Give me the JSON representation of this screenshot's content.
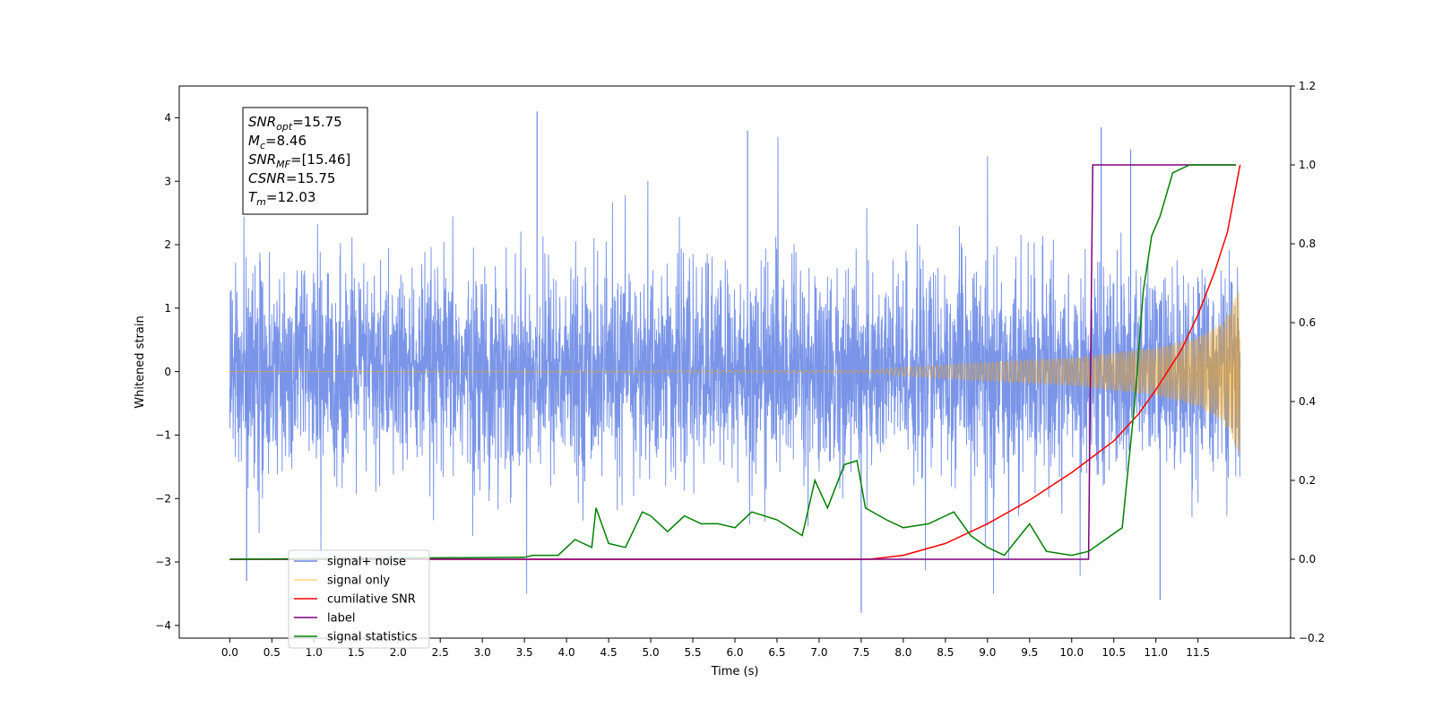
{
  "chart_data": {
    "type": "line",
    "xlabel": "Time (s)",
    "ylabel": "Whitened strain",
    "xlim": [
      -0.6,
      12.6
    ],
    "ylim": [
      -4.2,
      4.5
    ],
    "y2lim": [
      -0.2,
      1.2
    ],
    "x_ticks": [
      0.0,
      0.5,
      1.0,
      1.5,
      2.0,
      2.5,
      3.0,
      3.5,
      4.0,
      4.5,
      5.0,
      5.5,
      6.0,
      6.5,
      7.0,
      7.5,
      8.0,
      8.5,
      9.0,
      9.5,
      10.0,
      10.5,
      11.0,
      11.5
    ],
    "x_tick_labels": [
      "0.0",
      "0.5",
      "1.0",
      "1.5",
      "2.0",
      "2.5",
      "3.0",
      "3.5",
      "4.0",
      "4.5",
      "5.0",
      "5.5",
      "6.0",
      "6.5",
      "7.0",
      "7.5",
      "8.0",
      "8.5",
      "9.0",
      "9.5",
      "10.0",
      "10.5",
      "11.0",
      "11.5"
    ],
    "y_ticks": [
      -4,
      -3,
      -2,
      -1,
      0,
      1,
      2,
      3,
      4
    ],
    "y_tick_labels": [
      "−4",
      "−3",
      "−2",
      "−1",
      "0",
      "1",
      "2",
      "3",
      "4"
    ],
    "y2_ticks": [
      -0.2,
      0.0,
      0.2,
      0.4,
      0.6,
      0.8,
      1.0,
      1.2
    ],
    "y2_tick_labels": [
      "−0.2",
      "0.0",
      "0.2",
      "0.4",
      "0.6",
      "0.8",
      "1.0",
      "1.2"
    ],
    "grid": false,
    "legend_position": "lower-left",
    "annotation": {
      "lines": [
        {
          "base": "SNR",
          "sub": "opt",
          "value": "=15.75"
        },
        {
          "base": "M",
          "sub": "c",
          "value": "=8.46"
        },
        {
          "base": "SNR",
          "sub": "MF",
          "value": "=[15.46]"
        },
        {
          "base": "CSNR",
          "sub": "",
          "value": "=15.75"
        },
        {
          "base": "T",
          "sub": "m",
          "value": "=12.03"
        }
      ]
    },
    "series": [
      {
        "name": "signal+ noise",
        "axis": "left",
        "color": "#6b89e6",
        "style": "noise band",
        "x_range": [
          0.0,
          12.0
        ],
        "typical_range": [
          -2.2,
          2.3
        ],
        "spike_extremes": [
          4.1,
          -3.8
        ]
      },
      {
        "name": "signal only",
        "axis": "left",
        "color": "#ffa500",
        "style": "chirp",
        "x_range": [
          0.0,
          12.0
        ],
        "envelope": [
          [
            0,
            0
          ],
          [
            7.6,
            0.02
          ],
          [
            8.0,
            0.07
          ],
          [
            9.0,
            0.15
          ],
          [
            10.0,
            0.22
          ],
          [
            11.0,
            0.38
          ],
          [
            11.5,
            0.55
          ],
          [
            11.8,
            0.8
          ],
          [
            12.0,
            1.3
          ]
        ]
      },
      {
        "name": "cumilative SNR",
        "axis": "right",
        "color": "#ff0000",
        "x": [
          0,
          7.6,
          8.0,
          8.5,
          9.0,
          9.5,
          10.0,
          10.5,
          10.8,
          11.0,
          11.3,
          11.5,
          11.7,
          11.85,
          12.0
        ],
        "y": [
          0,
          0.0,
          0.01,
          0.04,
          0.09,
          0.15,
          0.22,
          0.3,
          0.37,
          0.43,
          0.53,
          0.62,
          0.73,
          0.83,
          1.0
        ]
      },
      {
        "name": "label",
        "axis": "right",
        "color": "#800080",
        "x": [
          0,
          10.2,
          10.25,
          11.95
        ],
        "y": [
          0,
          0,
          1.0,
          1.0
        ]
      },
      {
        "name": "signal statistics",
        "axis": "right",
        "color": "#008000",
        "x": [
          0,
          3.5,
          3.6,
          3.9,
          4.1,
          4.3,
          4.35,
          4.5,
          4.7,
          4.9,
          5.0,
          5.2,
          5.4,
          5.6,
          5.8,
          6.0,
          6.2,
          6.5,
          6.8,
          6.95,
          7.1,
          7.3,
          7.45,
          7.55,
          7.8,
          8.0,
          8.3,
          8.6,
          8.8,
          9.0,
          9.2,
          9.5,
          9.7,
          10.0,
          10.2,
          10.4,
          10.6,
          10.75,
          10.85,
          10.95,
          11.05,
          11.2,
          11.4,
          11.95
        ],
        "y": [
          0.0,
          0.005,
          0.01,
          0.01,
          0.05,
          0.03,
          0.13,
          0.04,
          0.03,
          0.12,
          0.11,
          0.07,
          0.11,
          0.09,
          0.09,
          0.08,
          0.12,
          0.1,
          0.06,
          0.2,
          0.13,
          0.24,
          0.25,
          0.13,
          0.1,
          0.08,
          0.09,
          0.12,
          0.06,
          0.03,
          0.01,
          0.09,
          0.02,
          0.01,
          0.02,
          0.05,
          0.08,
          0.4,
          0.68,
          0.82,
          0.87,
          0.98,
          1.0,
          1.0
        ]
      }
    ]
  }
}
